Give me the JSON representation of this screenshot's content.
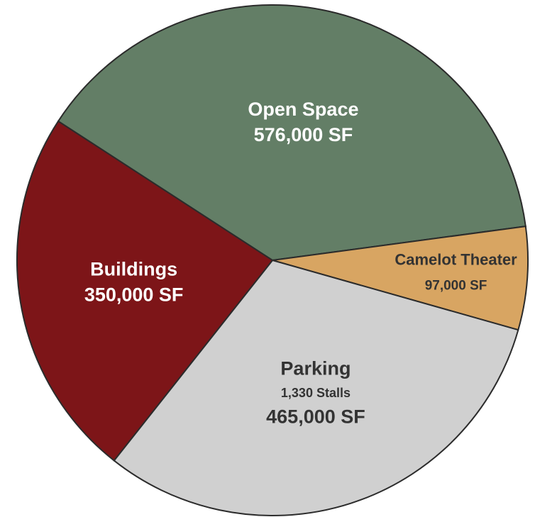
{
  "chart_data": {
    "type": "pie",
    "categories": [
      "Open Space",
      "Camelot Theater",
      "Parking",
      "Buildings"
    ],
    "values": [
      576000,
      97000,
      465000,
      350000
    ],
    "value_labels": [
      "576,000 SF",
      "97,000 SF",
      "465,000 SF",
      "350,000 SF"
    ],
    "colors": [
      "#637e66",
      "#d8a562",
      "#d0d0d0",
      "#7d1518"
    ],
    "text_colors": [
      "#ffffff",
      "#333333",
      "#333333",
      "#ffffff"
    ],
    "annotations": [
      {
        "category": "Parking",
        "text": "1,330 Stalls"
      }
    ]
  }
}
